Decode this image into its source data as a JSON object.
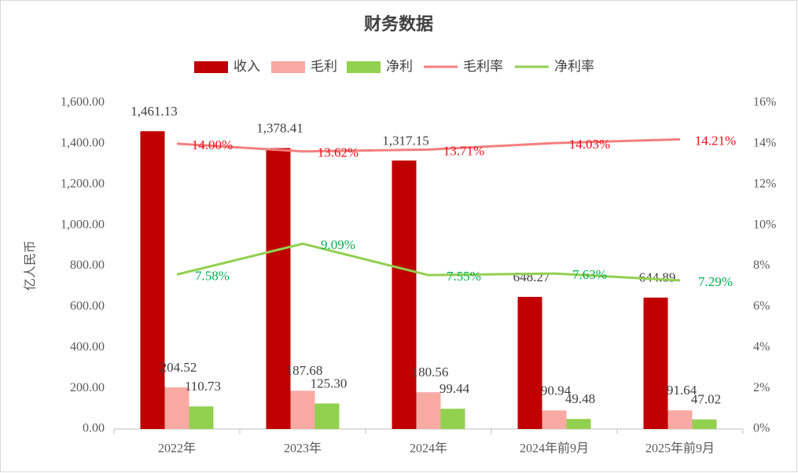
{
  "chart_data": {
    "type": "bar",
    "title": "财务数据",
    "y_label": "亿人民币",
    "categories": [
      "2022年",
      "2023年",
      "2024年",
      "2024年前9月",
      "2025年前9月"
    ],
    "series": [
      {
        "name": "收入",
        "type": "bar",
        "color": "#c00000",
        "values": [
          1461.13,
          1378.41,
          1317.15,
          648.27,
          644.89
        ],
        "value_labels": [
          "1,461.13",
          "1,378.41",
          "1,317.15",
          "648.27",
          "644.89"
        ]
      },
      {
        "name": "毛利",
        "type": "bar",
        "color": "#f8aaa2",
        "values": [
          204.52,
          187.68,
          180.56,
          90.94,
          91.64
        ],
        "value_labels": [
          "204.52",
          "187.68",
          "180.56",
          "90.94",
          "91.64"
        ]
      },
      {
        "name": "净利",
        "type": "bar",
        "color": "#92d050",
        "values": [
          110.73,
          125.3,
          99.44,
          49.48,
          47.02
        ],
        "value_labels": [
          "110.73",
          "125.30",
          "99.44",
          "49.48",
          "47.02"
        ]
      },
      {
        "name": "毛利率",
        "type": "line",
        "axis": "y2",
        "color": "#f47f7f",
        "label_color": "#e8101a",
        "values": [
          14.0,
          13.62,
          13.71,
          14.03,
          14.21
        ],
        "value_labels": [
          "14.00%",
          "13.62%",
          "13.71%",
          "14.03%",
          "14.21%"
        ]
      },
      {
        "name": "净利率",
        "type": "line",
        "axis": "y2",
        "color": "#92d050",
        "label_color": "#00b050",
        "values": [
          7.58,
          9.09,
          7.55,
          7.63,
          7.29
        ],
        "value_labels": [
          "7.58%",
          "9.09%",
          "7.55%",
          "7.63%",
          "7.29%"
        ]
      }
    ],
    "ylim": [
      0,
      1600
    ],
    "yticks": [
      {
        "value": 0,
        "label": "0.00"
      },
      {
        "value": 200,
        "label": "200.00"
      },
      {
        "value": 400,
        "label": "400.00"
      },
      {
        "value": 600,
        "label": "600.00"
      },
      {
        "value": 800,
        "label": "800.00"
      },
      {
        "value": 1000,
        "label": "1,000.00"
      },
      {
        "value": 1200,
        "label": "1,200.00"
      },
      {
        "value": 1400,
        "label": "1,400.00"
      },
      {
        "value": 1600,
        "label": "1,600.00"
      }
    ],
    "y2lim": [
      0,
      16
    ],
    "y2ticks": [
      {
        "value": 0,
        "label": "0%"
      },
      {
        "value": 2,
        "label": "2%"
      },
      {
        "value": 4,
        "label": "4%"
      },
      {
        "value": 6,
        "label": "6%"
      },
      {
        "value": 8,
        "label": "8%"
      },
      {
        "value": 10,
        "label": "10%"
      },
      {
        "value": 12,
        "label": "12%"
      },
      {
        "value": 14,
        "label": "14%"
      },
      {
        "value": 16,
        "label": "16%"
      }
    ],
    "grid": false
  }
}
